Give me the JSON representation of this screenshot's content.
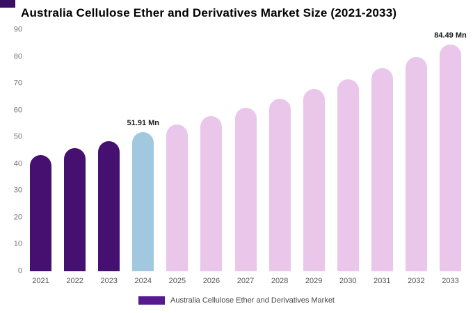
{
  "title": "Australia Cellulose Ether and Derivatives Market Size (2021-2033)",
  "colors": {
    "past_bar": "#45106f",
    "current_bar": "#a2c8e0",
    "forecast_bar": "#e9c6ea",
    "legend_swatch": "#571a8e"
  },
  "chart_data": {
    "type": "bar",
    "title": "Australia Cellulose Ether and Derivatives Market Size (2021-2033)",
    "xlabel": "",
    "ylabel": "",
    "ylim": [
      0,
      90
    ],
    "yticks": [
      0,
      10,
      20,
      30,
      40,
      50,
      60,
      70,
      80,
      90
    ],
    "grid": false,
    "unit": "Mn",
    "categories": [
      "2021",
      "2022",
      "2023",
      "2024",
      "2025",
      "2026",
      "2027",
      "2028",
      "2029",
      "2030",
      "2031",
      "2032",
      "2033"
    ],
    "values": [
      43.3,
      46.0,
      48.6,
      51.91,
      54.8,
      57.8,
      61.0,
      64.4,
      68.0,
      71.7,
      75.7,
      79.9,
      84.49
    ],
    "groups": [
      "past",
      "past",
      "past",
      "current",
      "forecast",
      "forecast",
      "forecast",
      "forecast",
      "forecast",
      "forecast",
      "forecast",
      "forecast",
      "forecast"
    ],
    "annotations": [
      {
        "category": "2024",
        "text": "51.91 Mn"
      },
      {
        "category": "2033",
        "text": "84.49 Mn"
      }
    ],
    "legend_position": "bottom",
    "legend": [
      {
        "label": "Australia Cellulose Ether and Derivatives Market",
        "color": "#571a8e"
      }
    ]
  },
  "legend": {
    "label": "Australia Cellulose Ether and Derivatives Market"
  }
}
